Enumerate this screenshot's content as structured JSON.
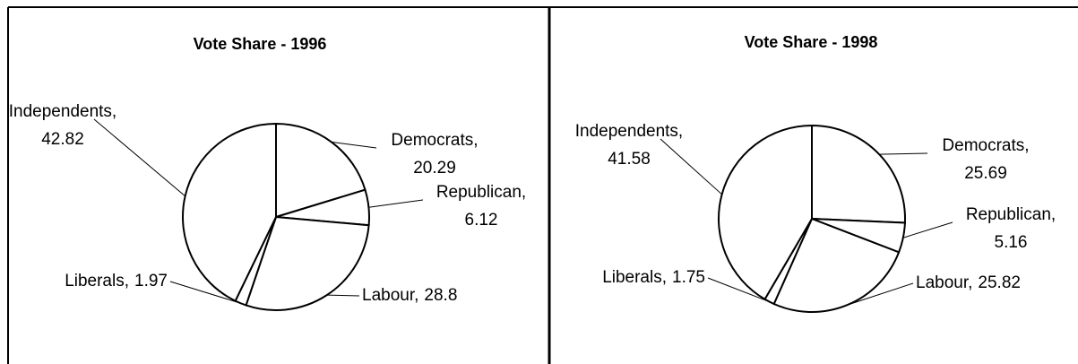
{
  "chart_data": [
    {
      "type": "pie",
      "title": "Vote Share - 1996",
      "categories": [
        "Democrats",
        "Republican",
        "Labour",
        "Liberals",
        "Independents"
      ],
      "values": [
        20.29,
        6.12,
        28.8,
        1.97,
        42.82
      ],
      "color": "#ffffff"
    },
    {
      "type": "pie",
      "title": "Vote Share - 1998",
      "categories": [
        "Democrats",
        "Republican",
        "Labour",
        "Liberals",
        "Independents"
      ],
      "values": [
        25.69,
        5.16,
        25.82,
        1.75,
        41.58
      ],
      "color": "#ffffff"
    }
  ]
}
